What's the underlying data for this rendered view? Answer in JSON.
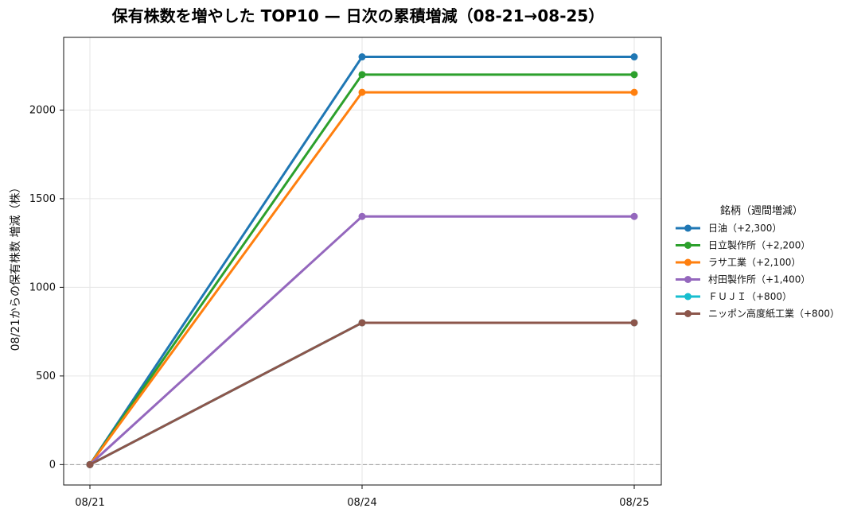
{
  "chart_data": {
    "type": "line",
    "title": "保有株数を増やした TOP10 — 日次の累積増減（08-21→08-25）",
    "xlabel": "",
    "ylabel": "08/21からの保有株数 増減（株）",
    "x": [
      "08/21",
      "08/24",
      "08/25"
    ],
    "ylim": [
      -115,
      2410
    ],
    "yticks": [
      0,
      500,
      1000,
      1500,
      2000
    ],
    "grid": true,
    "zero_line": true,
    "legend": {
      "title": "銘柄（週間増減）",
      "placement": "right"
    },
    "series": [
      {
        "name": "日油（+2,300）",
        "color": "#1f77b4",
        "values": [
          0,
          2300,
          2300
        ]
      },
      {
        "name": "日立製作所（+2,200）",
        "color": "#2ca02c",
        "values": [
          0,
          2200,
          2200
        ]
      },
      {
        "name": "ラサ工業（+2,100）",
        "color": "#ff7f0e",
        "values": [
          0,
          2100,
          2100
        ]
      },
      {
        "name": "村田製作所（+1,400）",
        "color": "#9467bd",
        "values": [
          0,
          1400,
          1400
        ]
      },
      {
        "name": "ＦＵＪＩ（+800）",
        "color": "#17becf",
        "values": [
          0,
          800,
          800
        ]
      },
      {
        "name": "ニッポン高度紙工業（+800）",
        "color": "#8c564b",
        "values": [
          0,
          800,
          800
        ]
      }
    ]
  }
}
